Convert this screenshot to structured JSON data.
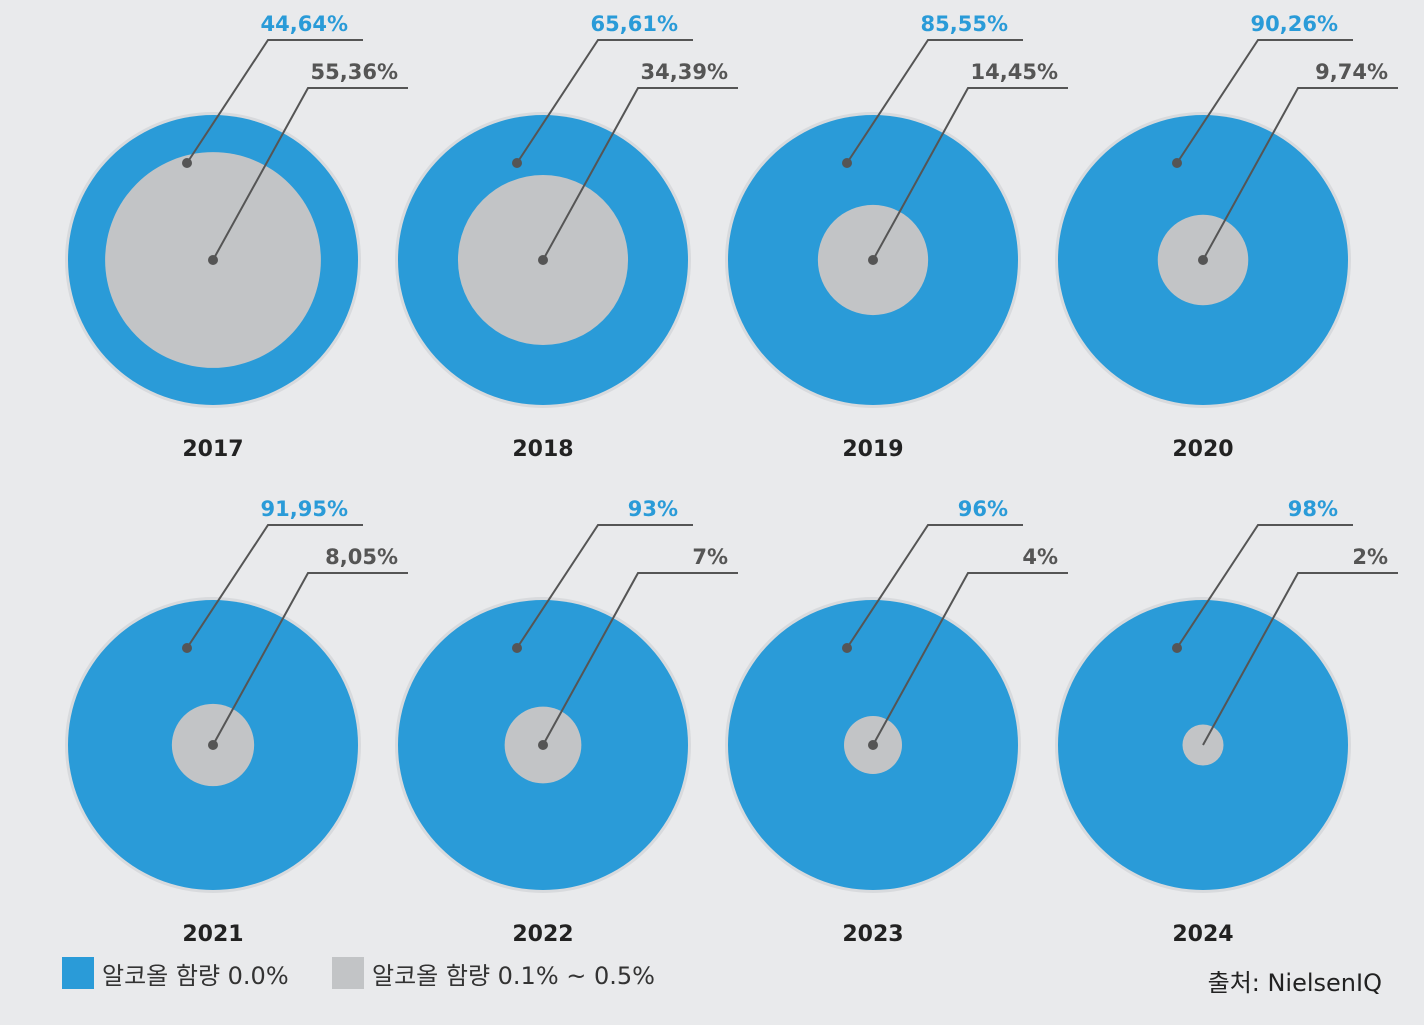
{
  "chart_data": {
    "type": "pie",
    "panels": [
      {
        "year": "2017",
        "zero": 44.64,
        "low": 55.36,
        "zero_label": "44,64%",
        "low_label": "55,36%"
      },
      {
        "year": "2018",
        "zero": 65.61,
        "low": 34.39,
        "zero_label": "65,61%",
        "low_label": "34,39%"
      },
      {
        "year": "2019",
        "zero": 85.55,
        "low": 14.45,
        "zero_label": "85,55%",
        "low_label": "14,45%"
      },
      {
        "year": "2020",
        "zero": 90.26,
        "low": 9.74,
        "zero_label": "90,26%",
        "low_label": "9,74%"
      },
      {
        "year": "2021",
        "zero": 91.95,
        "low": 8.05,
        "zero_label": "91,95%",
        "low_label": "8,05%"
      },
      {
        "year": "2022",
        "zero": 93,
        "low": 7,
        "zero_label": "93%",
        "low_label": "7%"
      },
      {
        "year": "2023",
        "zero": 96,
        "low": 4,
        "zero_label": "96%",
        "low_label": "4%"
      },
      {
        "year": "2024",
        "zero": 98,
        "low": 2,
        "zero_label": "98%",
        "low_label": "2%"
      }
    ],
    "legend": [
      {
        "label": "알코올 함량 0.0%",
        "color": "#2a9bd8"
      },
      {
        "label": "알코올 함량 0.1% ~ 0.5%",
        "color": "#c2c4c6"
      }
    ]
  },
  "source": "출처: NielsenIQ",
  "colors": {
    "zero": "#2a9bd8",
    "low": "#c2c4c6",
    "zero_label": "#2a9bd8",
    "low_label": "#555555",
    "leader": "#555555",
    "year": "#222222"
  }
}
